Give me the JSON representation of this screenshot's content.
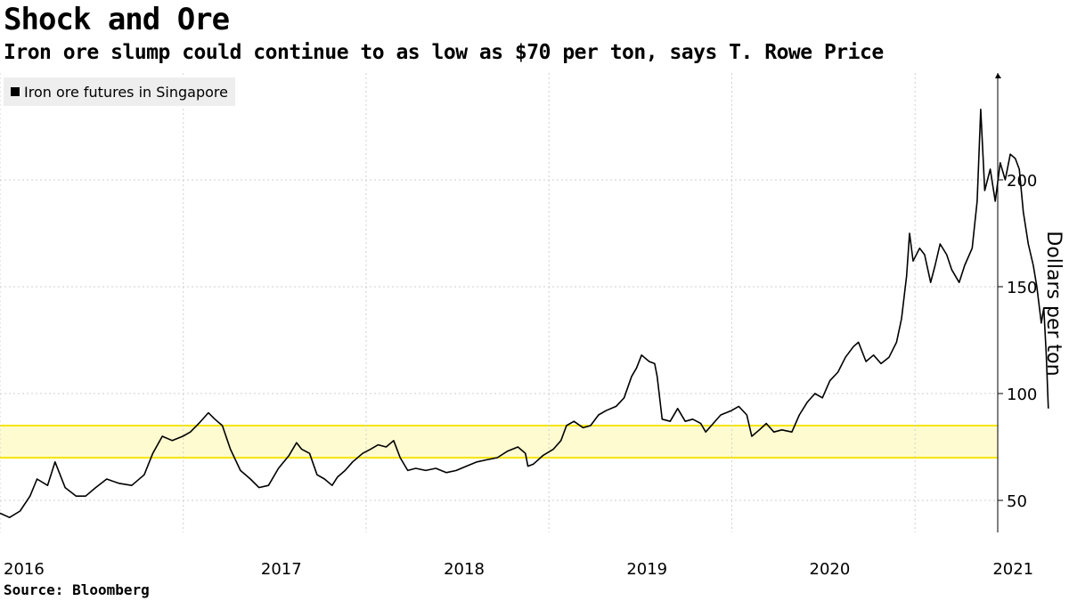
{
  "header": {
    "title": "Shock and Ore",
    "subtitle": "Iron ore slump could continue to as low as $70 per ton, says T. Rowe Price"
  },
  "footer": {
    "source": "Source: Bloomberg"
  },
  "chart_data": {
    "type": "line",
    "title": "Shock and Ore",
    "subtitle": "Iron ore slump could continue to as low as $70 per ton, says T. Rowe Price",
    "ylabel": "Dollars per ton",
    "xlabel": "",
    "ylim": [
      35,
      250
    ],
    "xlim": [
      "2016-01-01",
      "2021-06-15"
    ],
    "yticks": [
      50,
      100,
      150,
      200
    ],
    "xticks": [
      "2016",
      "2017",
      "2018",
      "2019",
      "2020",
      "2021"
    ],
    "grid": true,
    "legend": {
      "position": "top-left",
      "entries": [
        "Iron ore futures in Singapore"
      ]
    },
    "colors": {
      "series": "#000000",
      "band_line": "#f5e600",
      "band_fill": "#fffbd0"
    },
    "band": {
      "low": 70,
      "high": 85
    },
    "series": [
      {
        "name": "Iron ore futures in Singapore",
        "points": [
          [
            "2016-01-01",
            44
          ],
          [
            "2016-01-20",
            42
          ],
          [
            "2016-02-10",
            45
          ],
          [
            "2016-03-01",
            52
          ],
          [
            "2016-03-15",
            60
          ],
          [
            "2016-04-05",
            57
          ],
          [
            "2016-04-20",
            68
          ],
          [
            "2016-05-10",
            56
          ],
          [
            "2016-06-01",
            52
          ],
          [
            "2016-06-20",
            52
          ],
          [
            "2016-07-10",
            56
          ],
          [
            "2016-08-01",
            60
          ],
          [
            "2016-08-25",
            58
          ],
          [
            "2016-09-20",
            57
          ],
          [
            "2016-10-15",
            62
          ],
          [
            "2016-11-01",
            72
          ],
          [
            "2016-11-20",
            80
          ],
          [
            "2016-12-10",
            78
          ],
          [
            "2016-12-31",
            80
          ],
          [
            "2017-01-15",
            82
          ],
          [
            "2017-02-01",
            86
          ],
          [
            "2017-02-20",
            91
          ],
          [
            "2017-03-05",
            88
          ],
          [
            "2017-03-20",
            85
          ],
          [
            "2017-04-05",
            74
          ],
          [
            "2017-04-25",
            64
          ],
          [
            "2017-05-15",
            60
          ],
          [
            "2017-06-01",
            56
          ],
          [
            "2017-06-20",
            57
          ],
          [
            "2017-07-10",
            65
          ],
          [
            "2017-07-31",
            71
          ],
          [
            "2017-08-15",
            77
          ],
          [
            "2017-08-25",
            74
          ],
          [
            "2017-09-10",
            72
          ],
          [
            "2017-09-25",
            62
          ],
          [
            "2017-10-10",
            60
          ],
          [
            "2017-10-25",
            57
          ],
          [
            "2017-11-05",
            61
          ],
          [
            "2017-11-20",
            64
          ],
          [
            "2017-12-05",
            68
          ],
          [
            "2017-12-25",
            72
          ],
          [
            "2018-01-10",
            74
          ],
          [
            "2018-01-25",
            76
          ],
          [
            "2018-02-10",
            75
          ],
          [
            "2018-02-25",
            78
          ],
          [
            "2018-03-10",
            70
          ],
          [
            "2018-03-25",
            64
          ],
          [
            "2018-04-10",
            65
          ],
          [
            "2018-04-30",
            64
          ],
          [
            "2018-05-20",
            65
          ],
          [
            "2018-06-10",
            63
          ],
          [
            "2018-06-30",
            64
          ],
          [
            "2018-07-20",
            66
          ],
          [
            "2018-08-10",
            68
          ],
          [
            "2018-08-30",
            69
          ],
          [
            "2018-09-20",
            70
          ],
          [
            "2018-10-10",
            73
          ],
          [
            "2018-10-31",
            75
          ],
          [
            "2018-11-15",
            72
          ],
          [
            "2018-11-20",
            66
          ],
          [
            "2018-12-01",
            67
          ],
          [
            "2018-12-20",
            71
          ],
          [
            "2019-01-10",
            74
          ],
          [
            "2019-01-25",
            78
          ],
          [
            "2019-02-05",
            85
          ],
          [
            "2019-02-20",
            87
          ],
          [
            "2019-03-10",
            84
          ],
          [
            "2019-03-25",
            85
          ],
          [
            "2019-04-10",
            90
          ],
          [
            "2019-04-25",
            92
          ],
          [
            "2019-05-15",
            94
          ],
          [
            "2019-05-31",
            98
          ],
          [
            "2019-06-15",
            108
          ],
          [
            "2019-06-25",
            112
          ],
          [
            "2019-07-05",
            118
          ],
          [
            "2019-07-20",
            115
          ],
          [
            "2019-07-31",
            114
          ],
          [
            "2019-08-05",
            108
          ],
          [
            "2019-08-15",
            88
          ],
          [
            "2019-08-31",
            87
          ],
          [
            "2019-09-15",
            93
          ],
          [
            "2019-09-30",
            87
          ],
          [
            "2019-10-15",
            88
          ],
          [
            "2019-10-31",
            86
          ],
          [
            "2019-11-10",
            82
          ],
          [
            "2019-11-25",
            86
          ],
          [
            "2019-12-10",
            90
          ],
          [
            "2019-12-31",
            92
          ],
          [
            "2020-01-15",
            94
          ],
          [
            "2020-01-31",
            90
          ],
          [
            "2020-02-10",
            80
          ],
          [
            "2020-02-25",
            83
          ],
          [
            "2020-03-10",
            86
          ],
          [
            "2020-03-25",
            82
          ],
          [
            "2020-04-10",
            83
          ],
          [
            "2020-04-30",
            82
          ],
          [
            "2020-05-15",
            90
          ],
          [
            "2020-05-31",
            96
          ],
          [
            "2020-06-15",
            100
          ],
          [
            "2020-06-30",
            98
          ],
          [
            "2020-07-15",
            106
          ],
          [
            "2020-07-31",
            110
          ],
          [
            "2020-08-15",
            117
          ],
          [
            "2020-08-31",
            122
          ],
          [
            "2020-09-10",
            124
          ],
          [
            "2020-09-25",
            115
          ],
          [
            "2020-10-10",
            118
          ],
          [
            "2020-10-25",
            114
          ],
          [
            "2020-11-10",
            117
          ],
          [
            "2020-11-25",
            124
          ],
          [
            "2020-12-05",
            135
          ],
          [
            "2020-12-15",
            155
          ],
          [
            "2020-12-21",
            175
          ],
          [
            "2020-12-28",
            162
          ],
          [
            "2021-01-10",
            168
          ],
          [
            "2021-01-20",
            165
          ],
          [
            "2021-02-01",
            152
          ],
          [
            "2021-02-10",
            160
          ],
          [
            "2021-02-20",
            170
          ],
          [
            "2021-03-05",
            165
          ],
          [
            "2021-03-15",
            158
          ],
          [
            "2021-03-30",
            152
          ],
          [
            "2021-04-10",
            160
          ],
          [
            "2021-04-25",
            168
          ],
          [
            "2021-05-05",
            190
          ],
          [
            "2021-05-12",
            233
          ],
          [
            "2021-05-20",
            195
          ],
          [
            "2021-05-31",
            205
          ],
          [
            "2021-06-10",
            190
          ],
          [
            "2021-06-20",
            208
          ],
          [
            "2021-06-30",
            200
          ],
          [
            "2021-07-10",
            212
          ],
          [
            "2021-07-20",
            210
          ],
          [
            "2021-07-28",
            205
          ],
          [
            "2021-08-05",
            185
          ],
          [
            "2021-08-15",
            170
          ],
          [
            "2021-08-25",
            160
          ],
          [
            "2021-09-01",
            150
          ],
          [
            "2021-09-10",
            133
          ],
          [
            "2021-09-15",
            140
          ],
          [
            "2021-09-20",
            118
          ],
          [
            "2021-09-24",
            93
          ]
        ]
      }
    ]
  }
}
